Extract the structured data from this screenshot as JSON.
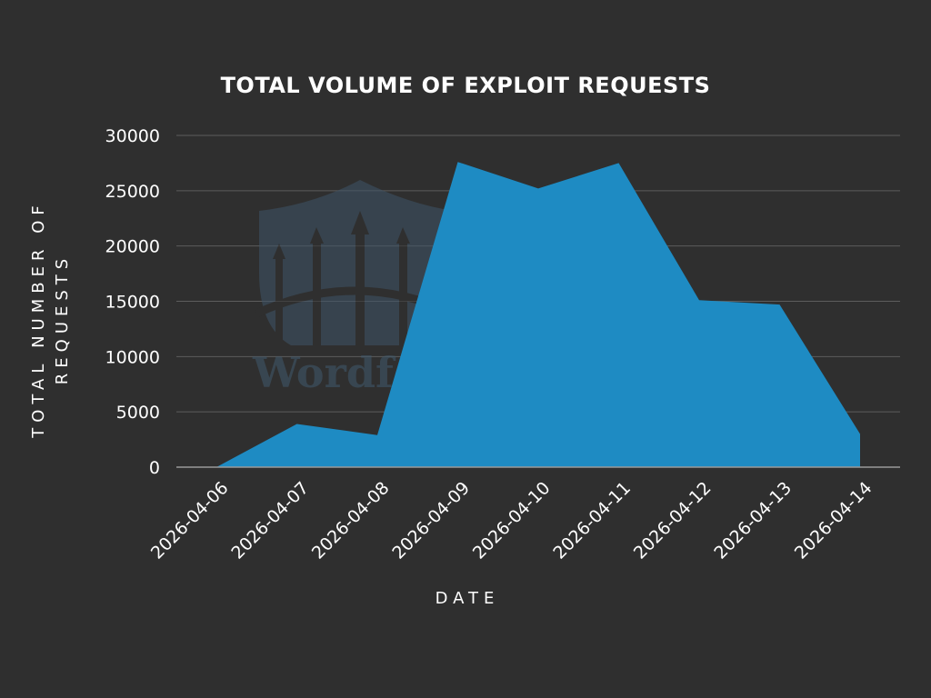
{
  "chart_data": {
    "type": "area",
    "title": "TOTAL VOLUME OF EXPLOIT REQUESTS",
    "xlabel": "DATE",
    "ylabel": [
      "TOTAL NUMBER OF",
      "REQUESTS"
    ],
    "categories": [
      "2026-04-06",
      "2026-04-07",
      "2026-04-08",
      "2026-04-09",
      "2026-04-10",
      "2026-04-11",
      "2026-04-12",
      "2026-04-13",
      "2026-04-14"
    ],
    "series": [
      {
        "values": [
          0,
          3900,
          2900,
          27600,
          25200,
          27500,
          15100,
          14700,
          3000
        ]
      }
    ],
    "ylim": [
      0,
      30000
    ],
    "yticks": [
      0,
      5000,
      10000,
      15000,
      20000,
      25000,
      30000
    ],
    "grid": true,
    "legend": "none"
  },
  "watermark": {
    "text": "Wordfence",
    "visible_text": "Wordfe"
  },
  "colors": {
    "background": "#2f2f2f",
    "area_fill": "#1e8bc3",
    "gridline": "#5c5c5c",
    "text": "#ffffff",
    "watermark": "#415a6e"
  }
}
